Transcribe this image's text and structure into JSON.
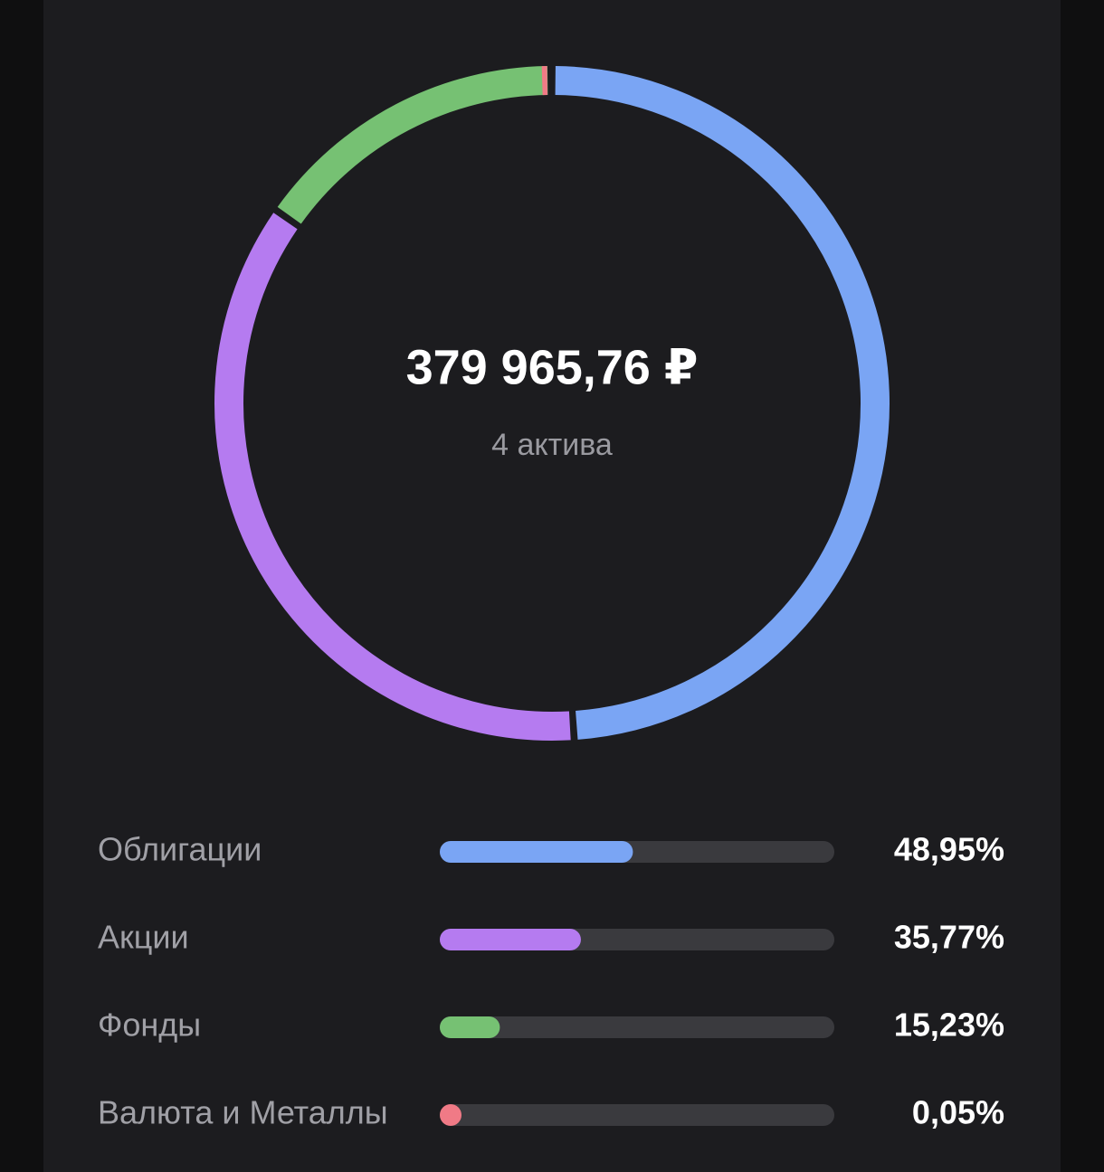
{
  "chart_data": {
    "type": "donut",
    "center_label": "379 965,76 ₽",
    "center_sublabel": "4 актива",
    "categories": [
      "Облигации",
      "Акции",
      "Фонды",
      "Валюта и Металлы"
    ],
    "values": [
      48.95,
      35.77,
      15.23,
      0.05
    ],
    "value_labels": [
      "48,95%",
      "35,77%",
      "15,23%",
      "0,05%"
    ],
    "colors": [
      "#7aa5f4",
      "#b57bf0",
      "#76c173",
      "#f07a86"
    ]
  }
}
